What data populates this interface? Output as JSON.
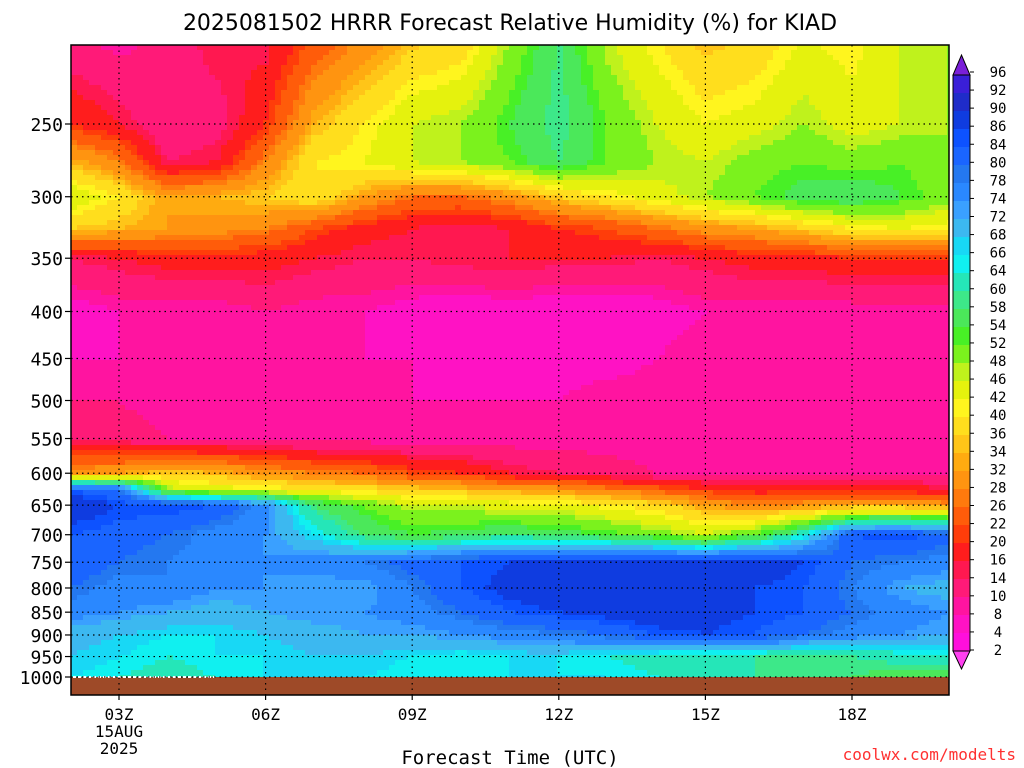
{
  "chart_data": {
    "type": "heatmap",
    "title": "2025081502 HRRR Forecast Relative Humidity (%) for KIAD",
    "xlabel": "Forecast Time (UTC)",
    "ylabel": "",
    "x_ticks": [
      {
        "label": "03Z",
        "hour": 3,
        "sub": [
          "15AUG",
          "2025"
        ]
      },
      {
        "label": "06Z",
        "hour": 6,
        "sub": []
      },
      {
        "label": "09Z",
        "hour": 9,
        "sub": []
      },
      {
        "label": "12Z",
        "hour": 12,
        "sub": []
      },
      {
        "label": "15Z",
        "hour": 15,
        "sub": []
      },
      {
        "label": "18Z",
        "hour": 18,
        "sub": []
      }
    ],
    "xlim": [
      2,
      20
    ],
    "y_ticks": [
      250,
      300,
      350,
      400,
      450,
      500,
      550,
      600,
      650,
      700,
      750,
      800,
      850,
      900,
      950,
      1000
    ],
    "ylim": [
      200,
      1000
    ],
    "y_scale": "log",
    "y_reversed": true,
    "grid": true,
    "legend_placement": "right",
    "colorbar_labels": [
      96,
      92,
      90,
      86,
      84,
      80,
      78,
      74,
      72,
      68,
      66,
      64,
      60,
      58,
      54,
      52,
      48,
      46,
      42,
      40,
      36,
      34,
      32,
      28,
      26,
      22,
      20,
      16,
      14,
      10,
      8,
      4,
      2
    ],
    "colorbar_colors": [
      "#3a1fd8",
      "#1f2cc9",
      "#0f3ce0",
      "#0d52ff",
      "#1a65ff",
      "#2478f0",
      "#2a88ff",
      "#3aa0ff",
      "#3cb8f0",
      "#18d8f5",
      "#10f0f0",
      "#25e6b8",
      "#3de889",
      "#4be85a",
      "#48f026",
      "#7bf21d",
      "#bff21c",
      "#e5f20d",
      "#fff51e",
      "#ffde1d",
      "#ffc518",
      "#ffab10",
      "#ff9410",
      "#ff7a0d",
      "#ff5c0a",
      "#ff3d0a",
      "#ff1d1d",
      "#ff1850",
      "#ff1a78",
      "#ff14a0",
      "#ff12c4",
      "#ff0fdc"
    ],
    "series": [
      {
        "pressure": 200,
        "rh": [
          10,
          8,
          12,
          16,
          14,
          22,
          28,
          34,
          36,
          48,
          58,
          46,
          40,
          34,
          36,
          42,
          40,
          46,
          48
        ]
      },
      {
        "pressure": 250,
        "rh": [
          20,
          16,
          10,
          12,
          20,
          34,
          40,
          46,
          48,
          54,
          60,
          52,
          46,
          42,
          44,
          48,
          44,
          46,
          48
        ]
      },
      {
        "pressure": 275,
        "rh": [
          34,
          28,
          14,
          16,
          28,
          40,
          42,
          46,
          48,
          52,
          58,
          52,
          48,
          46,
          50,
          52,
          50,
          52,
          48
        ]
      },
      {
        "pressure": 300,
        "rh": [
          46,
          40,
          32,
          34,
          36,
          40,
          32,
          26,
          26,
          30,
          36,
          40,
          44,
          48,
          52,
          56,
          58,
          54,
          50
        ]
      },
      {
        "pressure": 325,
        "rh": [
          36,
          34,
          32,
          30,
          28,
          22,
          18,
          16,
          14,
          16,
          20,
          22,
          26,
          30,
          32,
          36,
          40,
          42,
          40
        ]
      },
      {
        "pressure": 350,
        "rh": [
          14,
          16,
          18,
          18,
          18,
          16,
          14,
          14,
          16,
          16,
          16,
          16,
          14,
          16,
          18,
          18,
          20,
          20,
          20
        ]
      },
      {
        "pressure": 400,
        "rh": [
          6,
          8,
          8,
          8,
          10,
          8,
          8,
          6,
          4,
          6,
          4,
          4,
          6,
          8,
          8,
          8,
          8,
          8,
          8
        ]
      },
      {
        "pressure": 450,
        "rh": [
          8,
          8,
          10,
          10,
          8,
          8,
          8,
          8,
          6,
          6,
          6,
          6,
          8,
          10,
          10,
          8,
          10,
          8,
          8
        ]
      },
      {
        "pressure": 500,
        "rh": [
          10,
          10,
          8,
          8,
          8,
          10,
          8,
          8,
          8,
          8,
          8,
          10,
          10,
          10,
          8,
          10,
          10,
          10,
          10
        ]
      },
      {
        "pressure": 550,
        "rh": [
          14,
          12,
          10,
          10,
          10,
          8,
          8,
          8,
          8,
          8,
          8,
          8,
          8,
          8,
          8,
          8,
          8,
          8,
          8
        ]
      },
      {
        "pressure": 600,
        "rh": [
          30,
          32,
          36,
          34,
          30,
          28,
          26,
          22,
          20,
          16,
          14,
          12,
          10,
          10,
          10,
          10,
          10,
          10,
          10
        ]
      },
      {
        "pressure": 625,
        "rh": [
          84,
          80,
          48,
          44,
          42,
          40,
          38,
          36,
          34,
          32,
          30,
          28,
          24,
          20,
          18,
          18,
          18,
          18,
          16
        ]
      },
      {
        "pressure": 650,
        "rh": [
          90,
          86,
          86,
          84,
          76,
          58,
          52,
          46,
          46,
          44,
          44,
          40,
          38,
          32,
          28,
          30,
          32,
          32,
          30
        ]
      },
      {
        "pressure": 700,
        "rh": [
          84,
          82,
          80,
          76,
          74,
          66,
          58,
          54,
          56,
          58,
          56,
          54,
          50,
          46,
          52,
          64,
          84,
          86,
          82
        ]
      },
      {
        "pressure": 750,
        "rh": [
          84,
          80,
          78,
          76,
          74,
          76,
          78,
          82,
          84,
          86,
          88,
          90,
          88,
          88,
          90,
          86,
          80,
          78,
          76
        ]
      },
      {
        "pressure": 800,
        "rh": [
          80,
          76,
          78,
          74,
          74,
          72,
          72,
          78,
          84,
          88,
          90,
          88,
          86,
          86,
          86,
          84,
          78,
          72,
          70
        ]
      },
      {
        "pressure": 850,
        "rh": [
          76,
          74,
          72,
          70,
          72,
          74,
          74,
          76,
          80,
          84,
          86,
          88,
          90,
          88,
          86,
          84,
          80,
          76,
          74
        ]
      },
      {
        "pressure": 900,
        "rh": [
          70,
          68,
          66,
          66,
          68,
          70,
          72,
          72,
          74,
          76,
          78,
          80,
          84,
          86,
          84,
          80,
          76,
          74,
          72
        ]
      },
      {
        "pressure": 950,
        "rh": [
          68,
          66,
          64,
          66,
          66,
          68,
          68,
          66,
          64,
          66,
          66,
          64,
          62,
          60,
          60,
          58,
          60,
          62,
          64
        ]
      },
      {
        "pressure": 1000,
        "rh": [
          66,
          64,
          62,
          64,
          66,
          66,
          66,
          64,
          64,
          66,
          66,
          66,
          64,
          60,
          60,
          58,
          58,
          56,
          56
        ]
      }
    ]
  },
  "footer": {
    "credit": "coolwx.com/modelts"
  },
  "colors": {
    "terrain": "#9e4a28",
    "credit": "#ff3030"
  }
}
